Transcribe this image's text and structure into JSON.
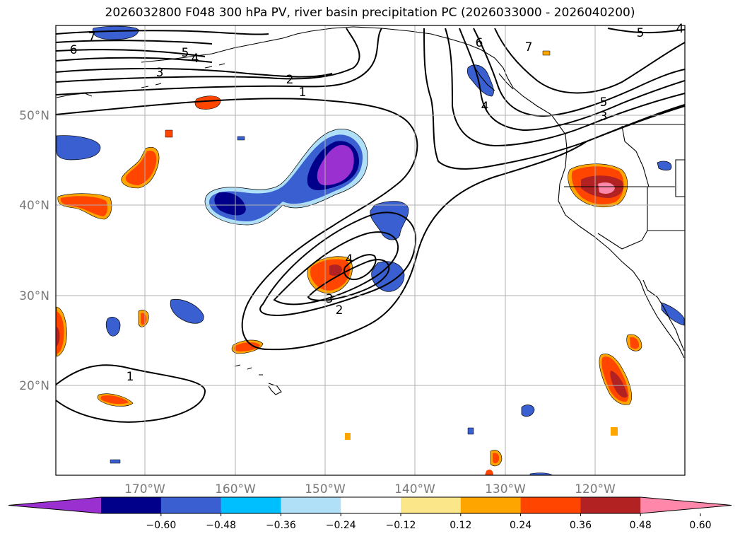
{
  "title": "2026032800 F048 300 hPa PV, river basin precipitation PC (2026033000 - 2026040200)",
  "lat_labels": [
    "50°N",
    "40°N",
    "30°N",
    "20°N"
  ],
  "lon_labels": [
    "170°W",
    "160°W",
    "150°W",
    "140°W",
    "130°W",
    "120°W"
  ],
  "colorbar": {
    "colors": [
      "#9b30d0",
      "#00008b",
      "#3a5fd0",
      "#00bfff",
      "#b0e0f8",
      "#ffffff",
      "#fce68a",
      "#ffa500",
      "#ff4500",
      "#b22222",
      "#ff88aa"
    ],
    "tick_labels": [
      "−0.60",
      "−0.48",
      "−0.36",
      "−0.24",
      "−0.12",
      "0.12",
      "0.24",
      "0.36",
      "0.48",
      "0.60"
    ]
  },
  "contour_labels": {
    "c7a": "7",
    "c6a": "6",
    "c5a": "5",
    "c4a": "4",
    "c3a": "3",
    "c2a": "2",
    "c1a": "1",
    "c6b": "6",
    "c7b": "7",
    "c4b": "4",
    "c5b": "5",
    "c3b": "3",
    "c5c": "5",
    "c4c": "4",
    "c4d": "4",
    "c3d": "3",
    "c2d": "2",
    "c1e": "1"
  }
}
